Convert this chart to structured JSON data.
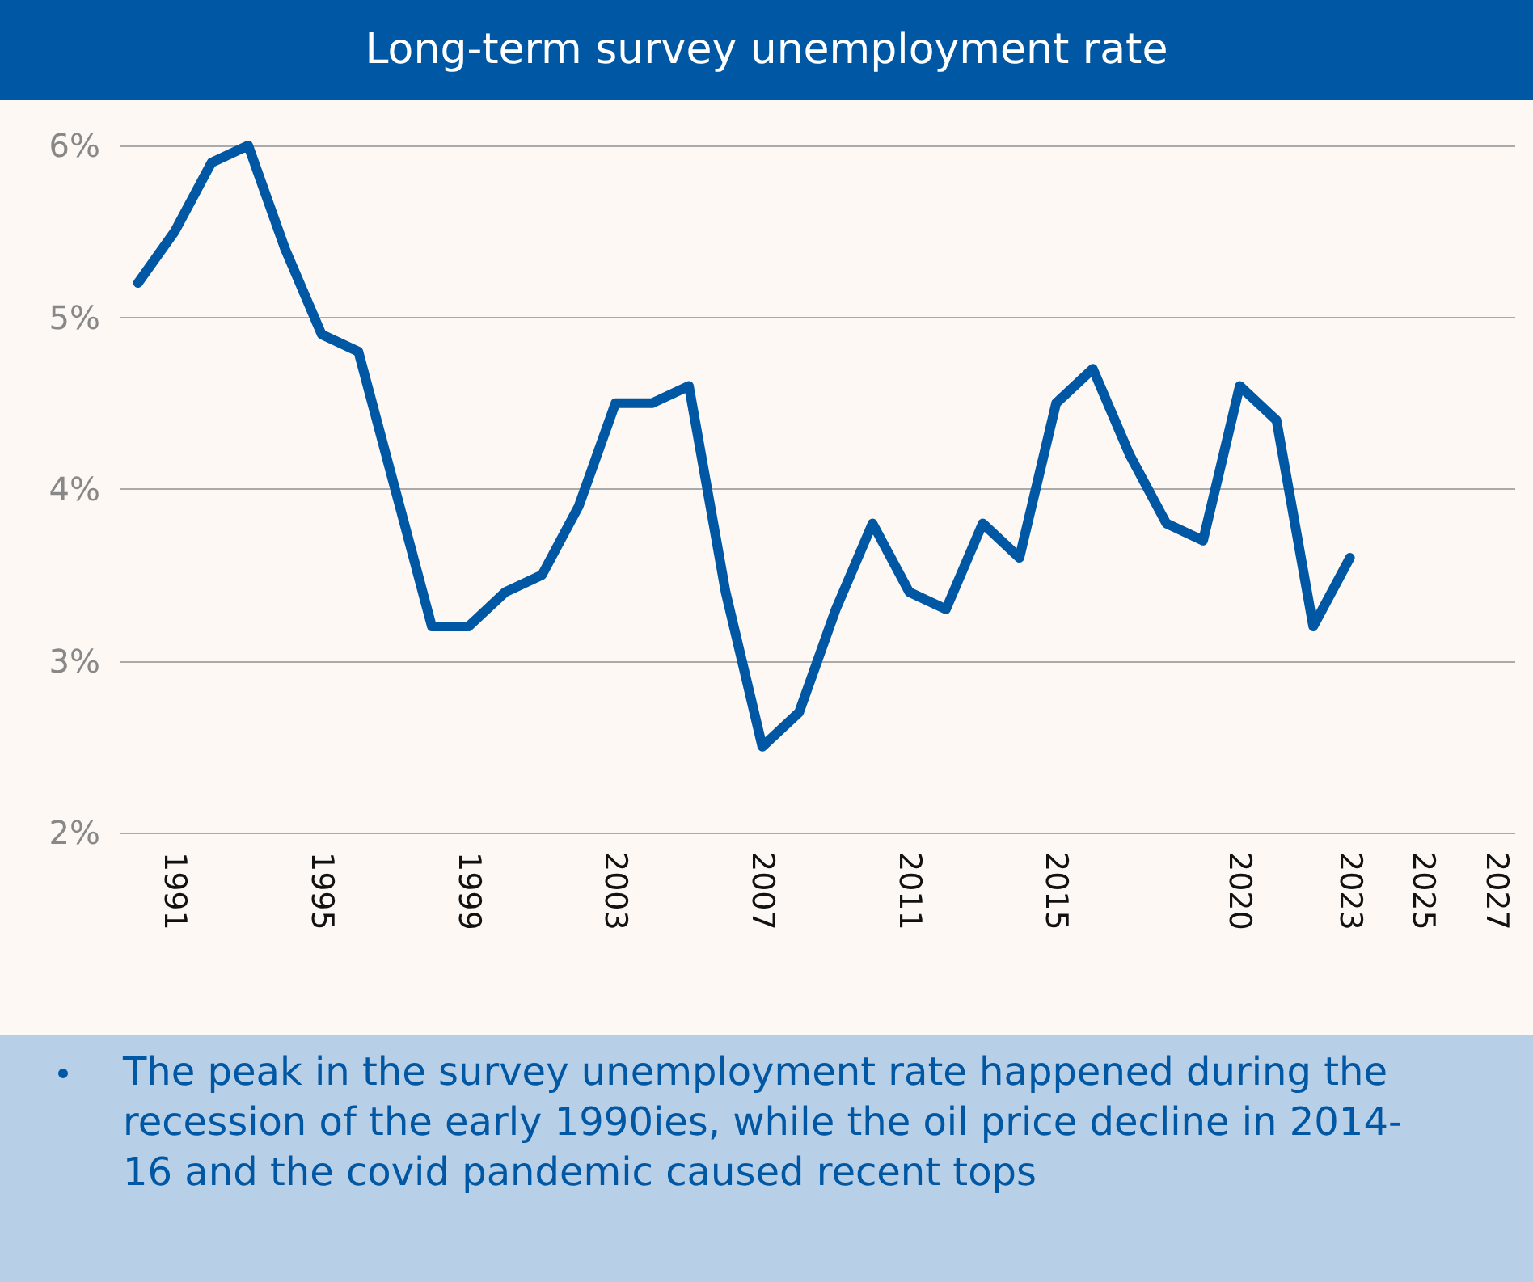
{
  "chart_data": {
    "type": "line",
    "title": "Long-term survey unemployment rate",
    "x": [
      1990,
      1991,
      1992,
      1993,
      1994,
      1995,
      1996,
      1997,
      1998,
      1999,
      2000,
      2001,
      2002,
      2003,
      2004,
      2005,
      2006,
      2007,
      2008,
      2009,
      2010,
      2011,
      2012,
      2013,
      2014,
      2015,
      2016,
      2017,
      2018,
      2019,
      2020,
      2021,
      2022,
      2023
    ],
    "series": [
      {
        "color": "#0057a3",
        "values": [
          5.2,
          5.5,
          5.9,
          6.0,
          5.4,
          4.9,
          4.8,
          4.0,
          3.2,
          3.2,
          3.4,
          3.5,
          3.9,
          4.5,
          4.5,
          4.6,
          3.4,
          2.5,
          2.7,
          3.3,
          3.8,
          3.4,
          3.3,
          3.8,
          3.6,
          4.5,
          4.7,
          4.2,
          3.8,
          3.7,
          4.6,
          4.4,
          3.2,
          3.6
        ]
      }
    ],
    "xlim": [
      1989.5,
      2027.5
    ],
    "xticks": [
      1991,
      1995,
      1999,
      2003,
      2007,
      2011,
      2015,
      2020,
      2023,
      2025,
      2027
    ],
    "ylim": [
      2,
      6
    ],
    "yticks": [
      {
        "value": 2,
        "label": "2%"
      },
      {
        "value": 3,
        "label": "3%"
      },
      {
        "value": 4,
        "label": "4%"
      },
      {
        "value": 5,
        "label": "5%"
      },
      {
        "value": 6,
        "label": "6%"
      }
    ],
    "grid": "y",
    "marker": "none",
    "line_style": "solid",
    "annotations": [
      "The peak in the survey unemployment rate happened during the recession of the early 1990ies, while the oil price decline in 2014-16 and the covid pandemic caused recent tops"
    ]
  }
}
